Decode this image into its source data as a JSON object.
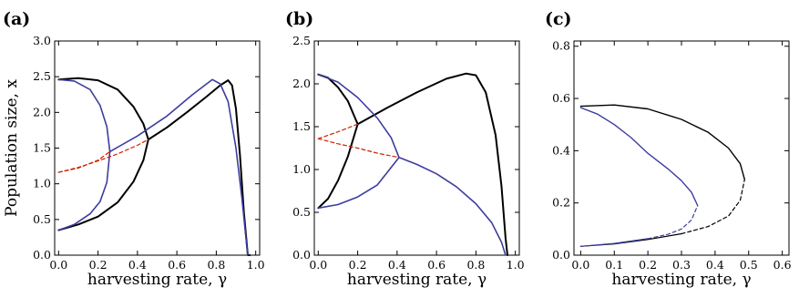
{
  "chart_data": [
    {
      "panel": "(a)",
      "type": "line",
      "xlabel": "harvesting rate, γ",
      "ylabel": "Population size, x",
      "xlim": [
        -0.02,
        1.02
      ],
      "ylim": [
        0.0,
        3.0
      ],
      "xticks": [
        0.0,
        0.2,
        0.4,
        0.6,
        0.8,
        1.0
      ],
      "yticks": [
        0.0,
        0.5,
        1.0,
        1.5,
        2.0,
        2.5,
        3.0
      ],
      "xtick_labels": [
        "0.0",
        "0.2",
        "0.4",
        "0.6",
        "0.8",
        "1.0"
      ],
      "ytick_labels": [
        "0.0",
        "0.5",
        "1.0",
        "1.5",
        "2.0",
        "2.5",
        "3.0"
      ],
      "grid": false,
      "series": [
        {
          "color": "#000000",
          "style": "solid",
          "width": 2.0,
          "points": [
            [
              0,
              2.46
            ],
            [
              0.1,
              2.48
            ],
            [
              0.2,
              2.45
            ],
            [
              0.3,
              2.32
            ],
            [
              0.38,
              2.08
            ],
            [
              0.43,
              1.84
            ],
            [
              0.455,
              1.62
            ],
            [
              0.43,
              1.33
            ],
            [
              0.38,
              1.03
            ],
            [
              0.3,
              0.74
            ],
            [
              0.2,
              0.54
            ],
            [
              0.1,
              0.43
            ],
            [
              0,
              0.35
            ]
          ]
        },
        {
          "color": "#000000",
          "style": "solid",
          "width": 2.0,
          "points": [
            [
              0.455,
              1.62
            ],
            [
              0.55,
              1.79
            ],
            [
              0.65,
              2.0
            ],
            [
              0.75,
              2.22
            ],
            [
              0.82,
              2.38
            ],
            [
              0.86,
              2.45
            ],
            [
              0.88,
              2.38
            ],
            [
              0.9,
              2.05
            ],
            [
              0.92,
              1.4
            ],
            [
              0.94,
              0.6
            ],
            [
              0.96,
              0.0
            ],
            [
              0.97,
              0.0
            ]
          ]
        },
        {
          "color": "#3d3d9e",
          "style": "solid",
          "width": 1.6,
          "points": [
            [
              0,
              2.46
            ],
            [
              0.08,
              2.44
            ],
            [
              0.16,
              2.32
            ],
            [
              0.21,
              2.1
            ],
            [
              0.245,
              1.8
            ],
            [
              0.26,
              1.45
            ],
            [
              0.245,
              1.02
            ],
            [
              0.21,
              0.75
            ],
            [
              0.16,
              0.58
            ],
            [
              0.08,
              0.43
            ],
            [
              0,
              0.35
            ]
          ]
        },
        {
          "color": "#3d3d9e",
          "style": "solid",
          "width": 1.6,
          "points": [
            [
              0.26,
              1.45
            ],
            [
              0.4,
              1.67
            ],
            [
              0.55,
              1.95
            ],
            [
              0.68,
              2.25
            ],
            [
              0.78,
              2.46
            ],
            [
              0.82,
              2.4
            ],
            [
              0.86,
              2.15
            ],
            [
              0.9,
              1.5
            ],
            [
              0.93,
              0.8
            ],
            [
              0.95,
              0.25
            ],
            [
              0.96,
              0.0
            ]
          ]
        },
        {
          "color": "#cc2200",
          "style": "dashed",
          "width": 1.2,
          "points": [
            [
              0,
              1.16
            ],
            [
              0.1,
              1.22
            ],
            [
              0.2,
              1.33
            ],
            [
              0.26,
              1.45
            ]
          ]
        },
        {
          "color": "#cc2200",
          "style": "dashed",
          "width": 1.2,
          "points": [
            [
              0,
              1.16
            ],
            [
              0.1,
              1.23
            ],
            [
              0.2,
              1.32
            ],
            [
              0.3,
              1.42
            ],
            [
              0.4,
              1.54
            ],
            [
              0.455,
              1.62
            ]
          ]
        }
      ]
    },
    {
      "panel": "(b)",
      "type": "line",
      "xlabel": "harvesting rate, γ",
      "ylabel": "",
      "xlim": [
        -0.02,
        1.02
      ],
      "ylim": [
        0.0,
        2.5
      ],
      "xticks": [
        0.0,
        0.2,
        0.4,
        0.6,
        0.8,
        1.0
      ],
      "yticks": [
        0.0,
        0.5,
        1.0,
        1.5,
        2.0,
        2.5
      ],
      "xtick_labels": [
        "0.0",
        "0.2",
        "0.4",
        "0.6",
        "0.8",
        "1.0"
      ],
      "ytick_labels": [
        "0.0",
        "0.5",
        "1.0",
        "1.5",
        "2.0",
        "2.5"
      ],
      "grid": false,
      "series": [
        {
          "color": "#000000",
          "style": "solid",
          "width": 2.0,
          "points": [
            [
              0,
              2.11
            ],
            [
              0.05,
              2.07
            ],
            [
              0.1,
              1.96
            ],
            [
              0.15,
              1.8
            ],
            [
              0.2,
              1.53
            ],
            [
              0.15,
              1.15
            ],
            [
              0.1,
              0.87
            ],
            [
              0.05,
              0.66
            ],
            [
              0,
              0.55
            ]
          ]
        },
        {
          "color": "#000000",
          "style": "solid",
          "width": 2.0,
          "points": [
            [
              0.2,
              1.53
            ],
            [
              0.35,
              1.72
            ],
            [
              0.5,
              1.9
            ],
            [
              0.65,
              2.06
            ],
            [
              0.75,
              2.12
            ],
            [
              0.8,
              2.1
            ],
            [
              0.85,
              1.9
            ],
            [
              0.9,
              1.4
            ],
            [
              0.93,
              0.8
            ],
            [
              0.95,
              0.2
            ],
            [
              0.96,
              0.0
            ]
          ]
        },
        {
          "color": "#3d3d9e",
          "style": "solid",
          "width": 1.6,
          "points": [
            [
              0,
              2.11
            ],
            [
              0.1,
              2.02
            ],
            [
              0.2,
              1.84
            ],
            [
              0.3,
              1.6
            ],
            [
              0.37,
              1.37
            ],
            [
              0.41,
              1.14
            ],
            [
              0.3,
              0.82
            ],
            [
              0.2,
              0.68
            ],
            [
              0.1,
              0.59
            ],
            [
              0,
              0.55
            ]
          ]
        },
        {
          "color": "#3d3d9e",
          "style": "solid",
          "width": 1.6,
          "points": [
            [
              0.41,
              1.14
            ],
            [
              0.5,
              1.06
            ],
            [
              0.6,
              0.95
            ],
            [
              0.7,
              0.8
            ],
            [
              0.8,
              0.6
            ],
            [
              0.88,
              0.38
            ],
            [
              0.93,
              0.15
            ],
            [
              0.95,
              0.0
            ]
          ]
        },
        {
          "color": "#cc2200",
          "style": "dashed",
          "width": 1.2,
          "points": [
            [
              0,
              1.36
            ],
            [
              0.1,
              1.44
            ],
            [
              0.2,
              1.53
            ]
          ]
        },
        {
          "color": "#cc2200",
          "style": "dashed",
          "width": 1.2,
          "points": [
            [
              0,
              1.36
            ],
            [
              0.1,
              1.3
            ],
            [
              0.2,
              1.25
            ],
            [
              0.3,
              1.19
            ],
            [
              0.41,
              1.14
            ]
          ]
        }
      ]
    },
    {
      "panel": "(c)",
      "type": "line",
      "xlabel": "harvesting rate, γ",
      "ylabel": "",
      "xlim": [
        -0.02,
        0.62
      ],
      "ylim": [
        0.0,
        0.82
      ],
      "xticks": [
        0.0,
        0.1,
        0.2,
        0.3,
        0.4,
        0.5,
        0.6
      ],
      "yticks": [
        0.0,
        0.2,
        0.4,
        0.6,
        0.8
      ],
      "xtick_labels": [
        "0.0",
        "0.1",
        "0.2",
        "0.3",
        "0.4",
        "0.5",
        "0.6"
      ],
      "ytick_labels": [
        "0.0",
        "0.2",
        "0.4",
        "0.6",
        "0.8"
      ],
      "grid": false,
      "series": [
        {
          "color": "#000000",
          "style": "solid",
          "width": 1.4,
          "points": [
            [
              0,
              0.57
            ],
            [
              0.1,
              0.575
            ],
            [
              0.2,
              0.56
            ],
            [
              0.3,
              0.52
            ],
            [
              0.38,
              0.47
            ],
            [
              0.44,
              0.41
            ],
            [
              0.475,
              0.35
            ],
            [
              0.488,
              0.29
            ]
          ]
        },
        {
          "color": "#000000",
          "style": "solid",
          "width": 1.2,
          "points": [
            [
              0,
              0.034
            ],
            [
              0.1,
              0.043
            ],
            [
              0.2,
              0.06
            ],
            [
              0.3,
              0.082
            ]
          ]
        },
        {
          "color": "#000000",
          "style": "dashed",
          "width": 1.2,
          "points": [
            [
              0.3,
              0.082
            ],
            [
              0.38,
              0.11
            ],
            [
              0.44,
              0.15
            ],
            [
              0.475,
              0.21
            ],
            [
              0.488,
              0.29
            ]
          ]
        },
        {
          "color": "#3d3d9e",
          "style": "solid",
          "width": 1.4,
          "points": [
            [
              0,
              0.565
            ],
            [
              0.05,
              0.54
            ],
            [
              0.1,
              0.5
            ],
            [
              0.15,
              0.45
            ],
            [
              0.2,
              0.39
            ],
            [
              0.26,
              0.33
            ],
            [
              0.3,
              0.285
            ],
            [
              0.33,
              0.24
            ],
            [
              0.348,
              0.19
            ]
          ]
        },
        {
          "color": "#3d3d9e",
          "style": "solid",
          "width": 1.2,
          "points": [
            [
              0,
              0.034
            ],
            [
              0.1,
              0.045
            ],
            [
              0.2,
              0.063
            ]
          ]
        },
        {
          "color": "#3d3d9e",
          "style": "dashed",
          "width": 1.2,
          "points": [
            [
              0.2,
              0.063
            ],
            [
              0.26,
              0.08
            ],
            [
              0.3,
              0.1
            ],
            [
              0.33,
              0.135
            ],
            [
              0.348,
              0.19
            ]
          ]
        }
      ]
    }
  ]
}
